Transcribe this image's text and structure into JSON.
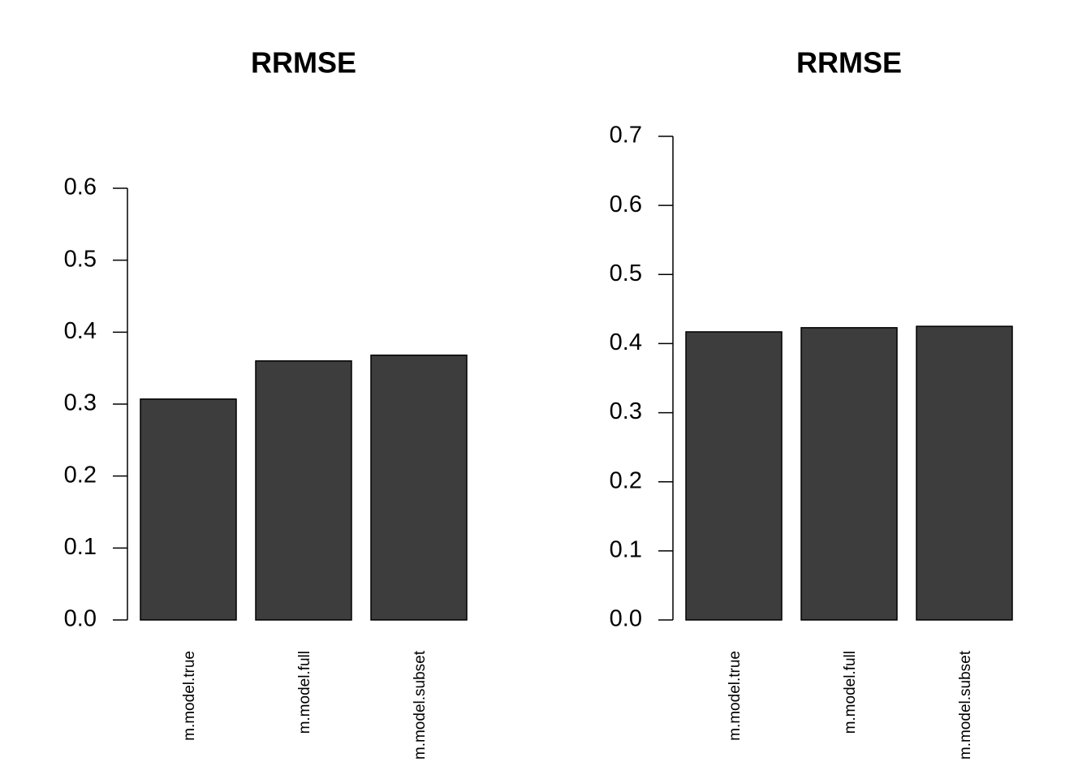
{
  "chart_data": [
    {
      "type": "bar",
      "title": "RRMSE",
      "categories": [
        "m.model.true",
        "m.model.full",
        "m.model.subset"
      ],
      "values": [
        0.307,
        0.36,
        0.368
      ],
      "color": "#3d3d3d",
      "ylim": [
        0,
        0.6
      ],
      "yticks": [
        {
          "value": 0,
          "label": "0.0"
        },
        0.1,
        0.2,
        0.3,
        0.4,
        0.5,
        0.6
      ]
    },
    {
      "type": "bar",
      "title": "RRMSE",
      "categories": [
        "m.model.true",
        "m.model.full",
        "m.model.subset"
      ],
      "values": [
        0.417,
        0.423,
        0.425
      ],
      "color": "#3d3d3d",
      "ylim": [
        0,
        0.7
      ],
      "yticks": [
        {
          "value": 0,
          "label": "0.0"
        },
        0.1,
        0.2,
        0.3,
        0.4,
        0.5,
        0.6,
        0.7
      ]
    }
  ]
}
